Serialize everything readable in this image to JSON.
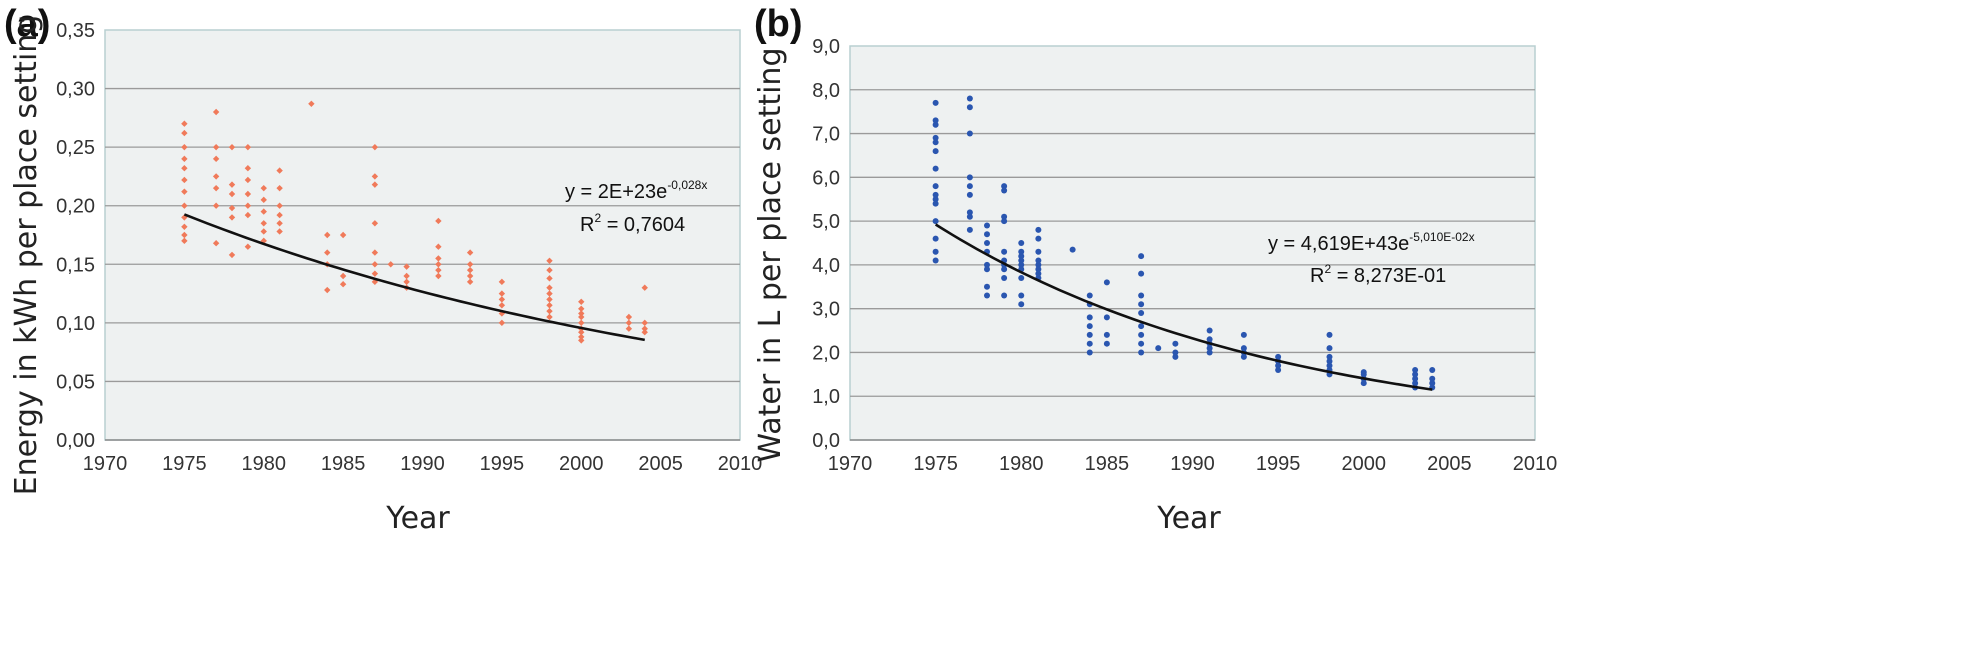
{
  "chart_data": [
    {
      "type": "scatter",
      "panel_label": "(a)",
      "xlabel": "Year",
      "ylabel": "Energy in kWh  per place setting",
      "xlim": [
        1970,
        2010
      ],
      "ylim": [
        0,
        0.35
      ],
      "xticks": [
        "1970",
        "1975",
        "1980",
        "1985",
        "1990",
        "1995",
        "2000",
        "2005",
        "2010"
      ],
      "yticks": [
        "0,00",
        "0,05",
        "0,10",
        "0,15",
        "0,20",
        "0,25",
        "0,30",
        "0,35"
      ],
      "grid": true,
      "point_color": "#f07a5a",
      "trend_color": "#111111",
      "trend": {
        "a": 2e+23,
        "b": -0.028,
        "from": 1975,
        "to": 2004
      },
      "equation": "y = 2E+23e",
      "equation_exponent": "-0,028x",
      "r2_prefix": "R",
      "r2_sup": "2",
      "r2_value": " = 0,7604",
      "points": [
        [
          1975,
          0.27
        ],
        [
          1975,
          0.262
        ],
        [
          1975,
          0.25
        ],
        [
          1975,
          0.24
        ],
        [
          1975,
          0.232
        ],
        [
          1975,
          0.222
        ],
        [
          1975,
          0.212
        ],
        [
          1975,
          0.2
        ],
        [
          1975,
          0.19
        ],
        [
          1975,
          0.182
        ],
        [
          1975,
          0.175
        ],
        [
          1975,
          0.17
        ],
        [
          1977,
          0.28
        ],
        [
          1977,
          0.25
        ],
        [
          1977,
          0.24
        ],
        [
          1977,
          0.225
        ],
        [
          1977,
          0.215
        ],
        [
          1977,
          0.2
        ],
        [
          1977,
          0.168
        ],
        [
          1978,
          0.25
        ],
        [
          1978,
          0.218
        ],
        [
          1978,
          0.21
        ],
        [
          1978,
          0.198
        ],
        [
          1978,
          0.19
        ],
        [
          1978,
          0.158
        ],
        [
          1979,
          0.25
        ],
        [
          1979,
          0.232
        ],
        [
          1979,
          0.222
        ],
        [
          1979,
          0.21
        ],
        [
          1979,
          0.2
        ],
        [
          1979,
          0.192
        ],
        [
          1979,
          0.165
        ],
        [
          1980,
          0.215
        ],
        [
          1980,
          0.205
        ],
        [
          1980,
          0.195
        ],
        [
          1980,
          0.185
        ],
        [
          1980,
          0.178
        ],
        [
          1980,
          0.17
        ],
        [
          1981,
          0.23
        ],
        [
          1981,
          0.215
        ],
        [
          1981,
          0.2
        ],
        [
          1981,
          0.192
        ],
        [
          1981,
          0.185
        ],
        [
          1981,
          0.178
        ],
        [
          1983,
          0.287
        ],
        [
          1984,
          0.175
        ],
        [
          1984,
          0.16
        ],
        [
          1984,
          0.15
        ],
        [
          1984,
          0.128
        ],
        [
          1985,
          0.175
        ],
        [
          1985,
          0.14
        ],
        [
          1985,
          0.133
        ],
        [
          1987,
          0.25
        ],
        [
          1987,
          0.225
        ],
        [
          1987,
          0.218
        ],
        [
          1987,
          0.185
        ],
        [
          1987,
          0.16
        ],
        [
          1987,
          0.15
        ],
        [
          1987,
          0.142
        ],
        [
          1987,
          0.135
        ],
        [
          1988,
          0.15
        ],
        [
          1989,
          0.148
        ],
        [
          1989,
          0.14
        ],
        [
          1989,
          0.135
        ],
        [
          1989,
          0.13
        ],
        [
          1991,
          0.187
        ],
        [
          1991,
          0.165
        ],
        [
          1991,
          0.155
        ],
        [
          1991,
          0.15
        ],
        [
          1991,
          0.145
        ],
        [
          1991,
          0.14
        ],
        [
          1993,
          0.16
        ],
        [
          1993,
          0.15
        ],
        [
          1993,
          0.145
        ],
        [
          1993,
          0.14
        ],
        [
          1993,
          0.135
        ],
        [
          1995,
          0.135
        ],
        [
          1995,
          0.125
        ],
        [
          1995,
          0.12
        ],
        [
          1995,
          0.115
        ],
        [
          1995,
          0.108
        ],
        [
          1995,
          0.1
        ],
        [
          1998,
          0.153
        ],
        [
          1998,
          0.145
        ],
        [
          1998,
          0.138
        ],
        [
          1998,
          0.13
        ],
        [
          1998,
          0.125
        ],
        [
          1998,
          0.12
        ],
        [
          1998,
          0.115
        ],
        [
          1998,
          0.11
        ],
        [
          1998,
          0.105
        ],
        [
          2000,
          0.118
        ],
        [
          2000,
          0.112
        ],
        [
          2000,
          0.108
        ],
        [
          2000,
          0.105
        ],
        [
          2000,
          0.1
        ],
        [
          2000,
          0.095
        ],
        [
          2000,
          0.092
        ],
        [
          2000,
          0.088
        ],
        [
          2000,
          0.085
        ],
        [
          2003,
          0.105
        ],
        [
          2003,
          0.1
        ],
        [
          2003,
          0.095
        ],
        [
          2004,
          0.13
        ],
        [
          2004,
          0.1
        ],
        [
          2004,
          0.095
        ],
        [
          2004,
          0.092
        ]
      ]
    },
    {
      "type": "scatter",
      "panel_label": "(b)",
      "xlabel": "Year",
      "ylabel": "Water in L per place setting",
      "xlim": [
        1970,
        2010
      ],
      "ylim": [
        0,
        9
      ],
      "xticks": [
        "1970",
        "1975",
        "1980",
        "1985",
        "1990",
        "1995",
        "2000",
        "2005",
        "2010"
      ],
      "yticks": [
        "0,0",
        "1,0",
        "2,0",
        "3,0",
        "4,0",
        "5,0",
        "6,0",
        "7,0",
        "8,0",
        "9,0"
      ],
      "grid": true,
      "point_color": "#2a56b0",
      "trend_color": "#111111",
      "trend": {
        "a": 4.619e+43,
        "b": -0.0501,
        "from": 1975,
        "to": 2004
      },
      "equation": "y = 4,619E+43e",
      "equation_exponent": "-5,010E-02x",
      "r2_prefix": "R",
      "r2_sup": "2",
      "r2_value": " = 8,273E-01",
      "points": [
        [
          1975,
          7.7
        ],
        [
          1975,
          7.3
        ],
        [
          1975,
          7.2
        ],
        [
          1975,
          6.9
        ],
        [
          1975,
          6.8
        ],
        [
          1975,
          6.6
        ],
        [
          1975,
          6.2
        ],
        [
          1975,
          5.8
        ],
        [
          1975,
          5.6
        ],
        [
          1975,
          5.5
        ],
        [
          1975,
          5.4
        ],
        [
          1975,
          5.0
        ],
        [
          1975,
          4.6
        ],
        [
          1975,
          4.3
        ],
        [
          1975,
          4.1
        ],
        [
          1977,
          7.8
        ],
        [
          1977,
          7.6
        ],
        [
          1977,
          7.0
        ],
        [
          1977,
          6.0
        ],
        [
          1977,
          5.8
        ],
        [
          1977,
          5.6
        ],
        [
          1977,
          5.2
        ],
        [
          1977,
          5.1
        ],
        [
          1977,
          4.8
        ],
        [
          1978,
          4.9
        ],
        [
          1978,
          4.7
        ],
        [
          1978,
          4.5
        ],
        [
          1978,
          4.3
        ],
        [
          1978,
          4.0
        ],
        [
          1978,
          3.9
        ],
        [
          1978,
          3.5
        ],
        [
          1978,
          3.3
        ],
        [
          1979,
          5.8
        ],
        [
          1979,
          5.7
        ],
        [
          1979,
          5.1
        ],
        [
          1979,
          5.0
        ],
        [
          1979,
          4.3
        ],
        [
          1979,
          4.1
        ],
        [
          1979,
          4.0
        ],
        [
          1979,
          3.9
        ],
        [
          1979,
          3.7
        ],
        [
          1979,
          3.3
        ],
        [
          1980,
          4.5
        ],
        [
          1980,
          4.3
        ],
        [
          1980,
          4.2
        ],
        [
          1980,
          4.1
        ],
        [
          1980,
          4.0
        ],
        [
          1980,
          3.9
        ],
        [
          1980,
          3.7
        ],
        [
          1980,
          3.3
        ],
        [
          1980,
          3.1
        ],
        [
          1981,
          4.8
        ],
        [
          1981,
          4.6
        ],
        [
          1981,
          4.3
        ],
        [
          1981,
          4.1
        ],
        [
          1981,
          4.0
        ],
        [
          1981,
          3.9
        ],
        [
          1981,
          3.8
        ],
        [
          1981,
          3.7
        ],
        [
          1983,
          4.35
        ],
        [
          1984,
          3.3
        ],
        [
          1984,
          3.1
        ],
        [
          1984,
          2.8
        ],
        [
          1984,
          2.6
        ],
        [
          1984,
          2.4
        ],
        [
          1984,
          2.2
        ],
        [
          1984,
          2.0
        ],
        [
          1985,
          3.6
        ],
        [
          1985,
          2.8
        ],
        [
          1985,
          2.4
        ],
        [
          1985,
          2.2
        ],
        [
          1987,
          4.2
        ],
        [
          1987,
          3.8
        ],
        [
          1987,
          3.3
        ],
        [
          1987,
          3.1
        ],
        [
          1987,
          2.9
        ],
        [
          1987,
          2.6
        ],
        [
          1987,
          2.4
        ],
        [
          1987,
          2.2
        ],
        [
          1987,
          2.0
        ],
        [
          1988,
          2.1
        ],
        [
          1989,
          2.2
        ],
        [
          1989,
          2.0
        ],
        [
          1989,
          1.9
        ],
        [
          1991,
          2.5
        ],
        [
          1991,
          2.3
        ],
        [
          1991,
          2.2
        ],
        [
          1991,
          2.1
        ],
        [
          1991,
          2.0
        ],
        [
          1993,
          2.4
        ],
        [
          1993,
          2.1
        ],
        [
          1993,
          2.0
        ],
        [
          1993,
          1.9
        ],
        [
          1995,
          1.9
        ],
        [
          1995,
          1.8
        ],
        [
          1995,
          1.7
        ],
        [
          1995,
          1.6
        ],
        [
          1998,
          2.4
        ],
        [
          1998,
          2.1
        ],
        [
          1998,
          1.9
        ],
        [
          1998,
          1.8
        ],
        [
          1998,
          1.7
        ],
        [
          1998,
          1.6
        ],
        [
          1998,
          1.5
        ],
        [
          2000,
          1.55
        ],
        [
          2000,
          1.5
        ],
        [
          2000,
          1.4
        ],
        [
          2000,
          1.3
        ],
        [
          2003,
          1.6
        ],
        [
          2003,
          1.5
        ],
        [
          2003,
          1.4
        ],
        [
          2003,
          1.3
        ],
        [
          2003,
          1.2
        ],
        [
          2004,
          1.6
        ],
        [
          2004,
          1.4
        ],
        [
          2004,
          1.3
        ],
        [
          2004,
          1.2
        ]
      ]
    }
  ]
}
